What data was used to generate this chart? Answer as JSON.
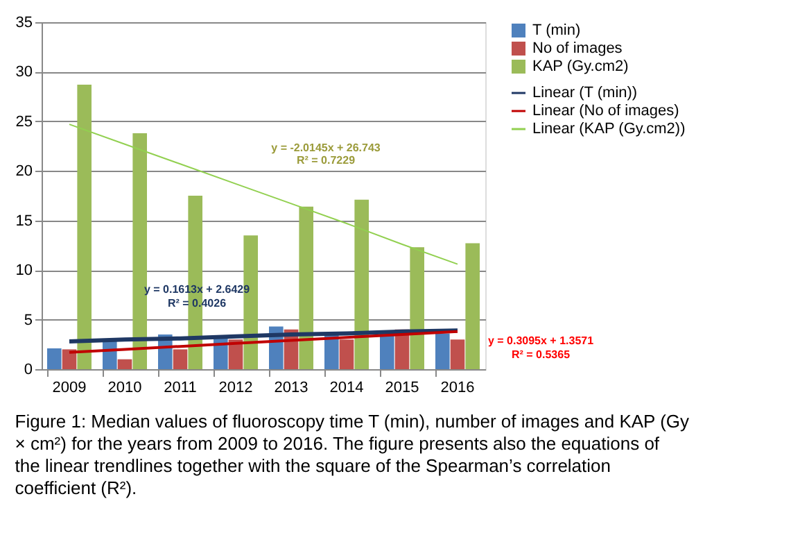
{
  "chart_data": {
    "type": "bar",
    "categories": [
      "2009",
      "2010",
      "2011",
      "2012",
      "2013",
      "2014",
      "2015",
      "2016"
    ],
    "series": [
      {
        "name": "T (min)",
        "color": "#4f81bd",
        "values": [
          2.1,
          2.9,
          3.5,
          3.4,
          4.3,
          3.7,
          3.9,
          3.6
        ]
      },
      {
        "name": "No of images",
        "color": "#c0504d",
        "values": [
          2,
          1,
          2,
          3,
          4,
          3,
          4,
          3
        ]
      },
      {
        "name": "KAP (Gy.cm2)",
        "color": "#9bbb59",
        "values": [
          28.7,
          23.8,
          17.5,
          13.5,
          16.4,
          17.1,
          12.3,
          12.7
        ]
      },
      {
        "name": "Linear (T (min))",
        "type": "line",
        "line_style": "solid",
        "color": "#1f3864",
        "values": [
          2.8,
          3.0,
          3.1,
          3.3,
          3.5,
          3.6,
          3.8,
          3.9
        ]
      },
      {
        "name": "Linear (No of images)",
        "type": "line",
        "line_style": "solid",
        "color": "#c00000",
        "values": [
          1.7,
          2.0,
          2.3,
          2.6,
          2.9,
          3.2,
          3.5,
          3.8
        ]
      },
      {
        "name": "Linear (KAP (Gy.cm2))",
        "type": "line",
        "line_style": "solid",
        "color": "#92d050",
        "values": [
          24.7,
          22.7,
          20.7,
          18.7,
          16.7,
          14.7,
          12.6,
          10.6
        ]
      }
    ],
    "ylim": [
      0,
      35
    ],
    "yticks": [
      0,
      5,
      10,
      15,
      20,
      25,
      30,
      35
    ],
    "grid": "y",
    "legend": "right",
    "annotations": [
      "y = -2.0145x + 26.743",
      "R² = 0.7229",
      "y = 0.1613x + 2.6429",
      "R² = 0.4026",
      "y = 0.3095x + 1.3571",
      "R² = 0.5365",
      "Figure 1: Median values of fluoroscopy time T (min), number of images and KAP (Gy × cm²) for the years from 2009 to 2016. The figure presents also the equations of the linear trendlines together with the square of the Spearman’s correlation coefficient (R²)."
    ]
  }
}
